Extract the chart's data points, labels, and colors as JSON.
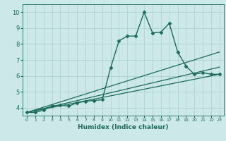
{
  "xlabel": "Humidex (Indice chaleur)",
  "bg_color": "#cce8e8",
  "grid_color": "#aacece",
  "line_color": "#1a6b5a",
  "xlim": [
    -0.5,
    23.5
  ],
  "ylim": [
    3.5,
    10.5
  ],
  "xticks": [
    0,
    1,
    2,
    3,
    4,
    5,
    6,
    7,
    8,
    9,
    10,
    11,
    12,
    13,
    14,
    15,
    16,
    17,
    18,
    19,
    20,
    21,
    22,
    23
  ],
  "yticks": [
    4,
    5,
    6,
    7,
    8,
    9,
    10
  ],
  "series": [
    {
      "x": [
        0,
        1,
        2,
        3,
        4,
        5,
        6,
        7,
        8,
        9,
        10,
        11,
        12,
        13,
        14,
        15,
        16,
        17,
        18,
        19,
        20,
        21,
        22,
        23
      ],
      "y": [
        3.7,
        3.7,
        3.85,
        4.1,
        4.15,
        4.1,
        4.3,
        4.4,
        4.45,
        4.5,
        6.5,
        8.2,
        8.5,
        8.5,
        10.0,
        8.7,
        8.75,
        9.3,
        7.5,
        6.6,
        6.1,
        6.2,
        6.1,
        6.1
      ],
      "marker": "D",
      "markersize": 2.5,
      "linewidth": 1.0,
      "has_marker": true
    },
    {
      "x": [
        0,
        23
      ],
      "y": [
        3.7,
        7.5
      ],
      "marker": "None",
      "markersize": 0,
      "linewidth": 0.9,
      "has_marker": false
    },
    {
      "x": [
        0,
        23
      ],
      "y": [
        3.7,
        6.55
      ],
      "marker": "None",
      "markersize": 0,
      "linewidth": 0.9,
      "has_marker": false
    },
    {
      "x": [
        0,
        23
      ],
      "y": [
        3.7,
        6.1
      ],
      "marker": "None",
      "markersize": 0,
      "linewidth": 0.9,
      "has_marker": false
    }
  ]
}
